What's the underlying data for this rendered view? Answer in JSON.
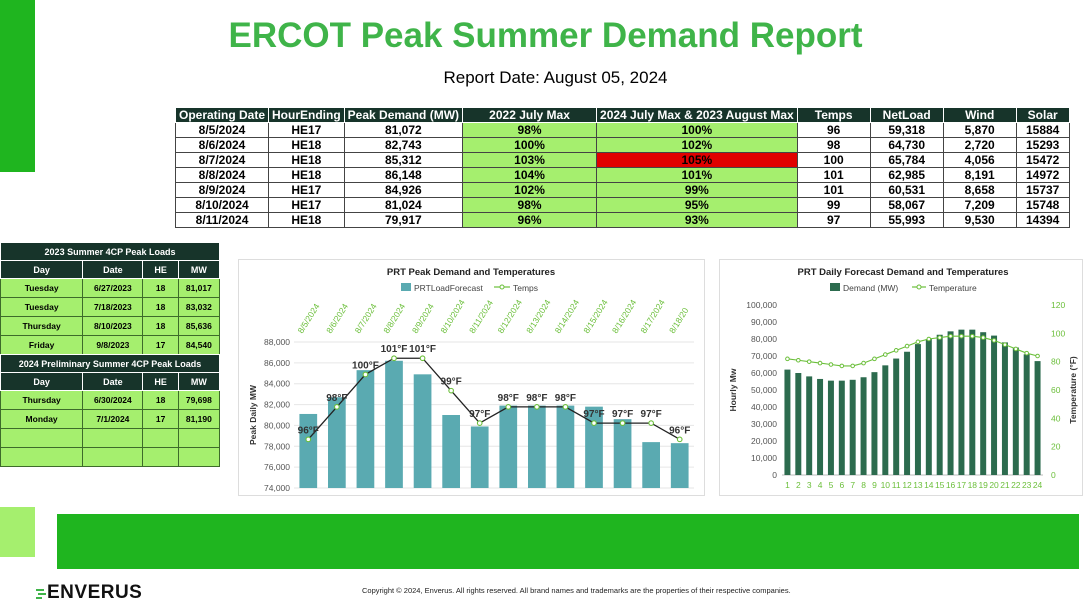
{
  "title": "ERCOT Peak Summer Demand Report",
  "report_date": "Report Date: August 05, 2024",
  "colors": {
    "brand_green": "#3fb449",
    "good": "#a5ef6e",
    "alert": "#e00000",
    "header_dark": "#17342a",
    "bar_teal": "#5aaab1",
    "bar_dark": "#2c6b4e"
  },
  "demand_table": {
    "headers": [
      "Operating Date",
      "HourEnding",
      "Peak Demand (MW)",
      "2022 July Max",
      "2024 July Max & 2023 August Max",
      "Temps",
      "NetLoad",
      "Wind",
      "Solar"
    ],
    "rows": [
      [
        "8/5/2024",
        "HE17",
        "81,072",
        "98%",
        "100%",
        "96",
        "59,318",
        "5,870",
        "15884"
      ],
      [
        "8/6/2024",
        "HE18",
        "82,743",
        "100%",
        "102%",
        "98",
        "64,730",
        "2,720",
        "15293"
      ],
      [
        "8/7/2024",
        "HE18",
        "85,312",
        "103%",
        "105%",
        "100",
        "65,784",
        "4,056",
        "15472"
      ],
      [
        "8/8/2024",
        "HE18",
        "86,148",
        "104%",
        "101%",
        "101",
        "62,985",
        "8,191",
        "14972"
      ],
      [
        "8/9/2024",
        "HE17",
        "84,926",
        "102%",
        "99%",
        "101",
        "60,531",
        "8,658",
        "15737"
      ],
      [
        "8/10/2024",
        "HE17",
        "81,024",
        "98%",
        "95%",
        "99",
        "58,067",
        "7,209",
        "15748"
      ],
      [
        "8/11/2024",
        "HE18",
        "79,917",
        "96%",
        "93%",
        "97",
        "55,993",
        "9,530",
        "14394"
      ]
    ]
  },
  "cp2023": {
    "title": "2023  Summer 4CP Peak Loads",
    "headers": [
      "Day",
      "Date",
      "HE",
      "MW"
    ],
    "rows": [
      [
        "Tuesday",
        "6/27/2023",
        "18",
        "81,017"
      ],
      [
        "Tuesday",
        "7/18/2023",
        "18",
        "83,032"
      ],
      [
        "Thursday",
        "8/10/2023",
        "18",
        "85,636"
      ],
      [
        "Friday",
        "9/8/2023",
        "17",
        "84,540"
      ]
    ]
  },
  "cp2024": {
    "title": "2024 Preliminary Summer 4CP Peak Loads",
    "headers": [
      "Day",
      "Date",
      "HE",
      "MW"
    ],
    "rows": [
      [
        "Thursday",
        "6/30/2024",
        "18",
        "79,698"
      ],
      [
        "Monday",
        "7/1/2024",
        "17",
        "81,190"
      ]
    ]
  },
  "chart_data": [
    {
      "type": "bar",
      "title": "PRT Peak Demand and Temperatures",
      "ylabel": "Peak Daily MW",
      "ylim": [
        74000,
        88000
      ],
      "yticks": [
        "74,000",
        "76,000",
        "78,000",
        "80,000",
        "82,000",
        "84,000",
        "86,000",
        "88,000"
      ],
      "categories": [
        "8/5/2024",
        "8/6/2024",
        "8/7/2024",
        "8/8/2024",
        "8/9/2024",
        "8/10/2024",
        "8/11/2024",
        "8/12/2024",
        "8/13/2024",
        "8/14/2024",
        "8/15/2024",
        "8/16/2024",
        "8/17/2024",
        "8/18/20"
      ],
      "series": [
        {
          "name": "PRTLoadForecast",
          "values": [
            81100,
            82700,
            85300,
            86200,
            84900,
            81000,
            79900,
            81900,
            81900,
            81900,
            81800,
            80600,
            78400,
            78300
          ]
        },
        {
          "name": "Temps",
          "values": [
            96,
            98,
            100,
            101,
            101,
            99,
            97,
            98,
            98,
            98,
            97,
            97,
            97,
            96
          ],
          "labels": [
            "96°F",
            "98°F",
            "100°F",
            "101°F",
            "101°F",
            "99°F",
            "97°F",
            "98°F",
            "98°F",
            "98°F",
            "97°F",
            "97°F",
            "97°F",
            "96°F"
          ]
        }
      ]
    },
    {
      "type": "bar",
      "title": "PRT Daily Forecast Demand and Temperatures",
      "ylabel": "Hourly Mw",
      "y2label": "Temperature (°F)",
      "ylim": [
        0,
        100000
      ],
      "y2lim": [
        0,
        120
      ],
      "yticks": [
        "0",
        "10,000",
        "20,000",
        "30,000",
        "40,000",
        "50,000",
        "60,000",
        "70,000",
        "80,000",
        "90,000",
        "100,000"
      ],
      "y2ticks": [
        "0",
        "20",
        "40",
        "60",
        "80",
        "100",
        "120"
      ],
      "categories": [
        "1",
        "2",
        "3",
        "4",
        "5",
        "6",
        "7",
        "8",
        "9",
        "10",
        "11",
        "12",
        "13",
        "14",
        "15",
        "16",
        "17",
        "18",
        "19",
        "20",
        "21",
        "22",
        "23",
        "24"
      ],
      "series": [
        {
          "name": "Demand (MW)",
          "values": [
            62000,
            60000,
            58000,
            56500,
            55500,
            55500,
            56000,
            57500,
            60500,
            64500,
            68500,
            72500,
            77000,
            80000,
            82500,
            84500,
            85500,
            85500,
            84000,
            82000,
            78000,
            75000,
            71000,
            67000
          ]
        },
        {
          "name": "Temperature",
          "values": [
            82,
            81,
            80,
            79,
            78,
            77,
            77,
            79,
            82,
            85,
            88,
            91,
            94,
            96,
            97,
            98,
            98,
            98,
            97,
            95,
            92,
            89,
            86,
            84
          ]
        }
      ]
    }
  ],
  "brand": "ENVERUS",
  "copyright": "Copyright © 2024, Enverus. All rights reserved. All brand names and trademarks are the properties of their respective companies."
}
